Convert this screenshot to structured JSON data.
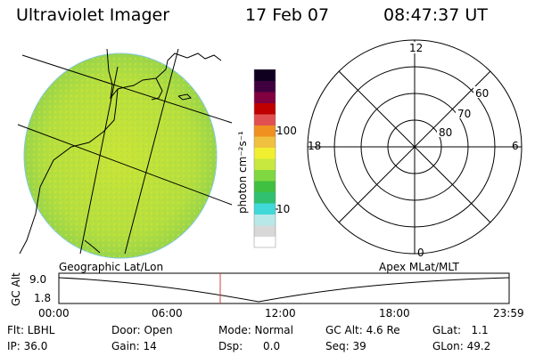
{
  "header": {
    "title": "Ultraviolet Imager",
    "date": "17 Feb 07",
    "time": "08:47:37 UT"
  },
  "colorbar": {
    "unit_label": "photon cm⁻²s⁻¹",
    "tick_labels": [
      "100",
      "10"
    ],
    "colors": [
      "#ffffff",
      "#d8d8d8",
      "#b8e8e8",
      "#40d8d8",
      "#30c070",
      "#40c040",
      "#80d840",
      "#c8e840",
      "#f0f030",
      "#f0c040",
      "#f09020",
      "#e05050",
      "#c00000",
      "#800040",
      "#400040",
      "#100020"
    ]
  },
  "polar": {
    "mlt_labels": [
      "12",
      "18",
      "6",
      "0"
    ],
    "lat_labels": [
      "60",
      "70",
      "80"
    ]
  },
  "track": {
    "left_label": "Geographic Lat/Lon",
    "right_label": "Apex  MLat/MLT",
    "y_axis_label": "GC Alt",
    "y_ticks": [
      "9.0",
      "1.8"
    ],
    "x_ticks": [
      "00:00",
      "06:00",
      "12:00",
      "18:00",
      "23:59"
    ],
    "marker_color": "#d04040"
  },
  "footer": {
    "row1": {
      "flt": "Flt: LBHL",
      "door": "Door: Open",
      "mode": "Mode: Normal",
      "gc_alt": "GC Alt: 4.6 Re",
      "glat": "GLat:   1.1"
    },
    "row2": {
      "ip": "IP: 36.0",
      "gain": "Gain: 14",
      "dsp": "Dsp:      0.0",
      "seq": "Seq: 39",
      "glon": "GLon: 49.2"
    }
  },
  "image_colors": {
    "disc_base": "#b8e040",
    "disc_edge": "#90d448"
  }
}
